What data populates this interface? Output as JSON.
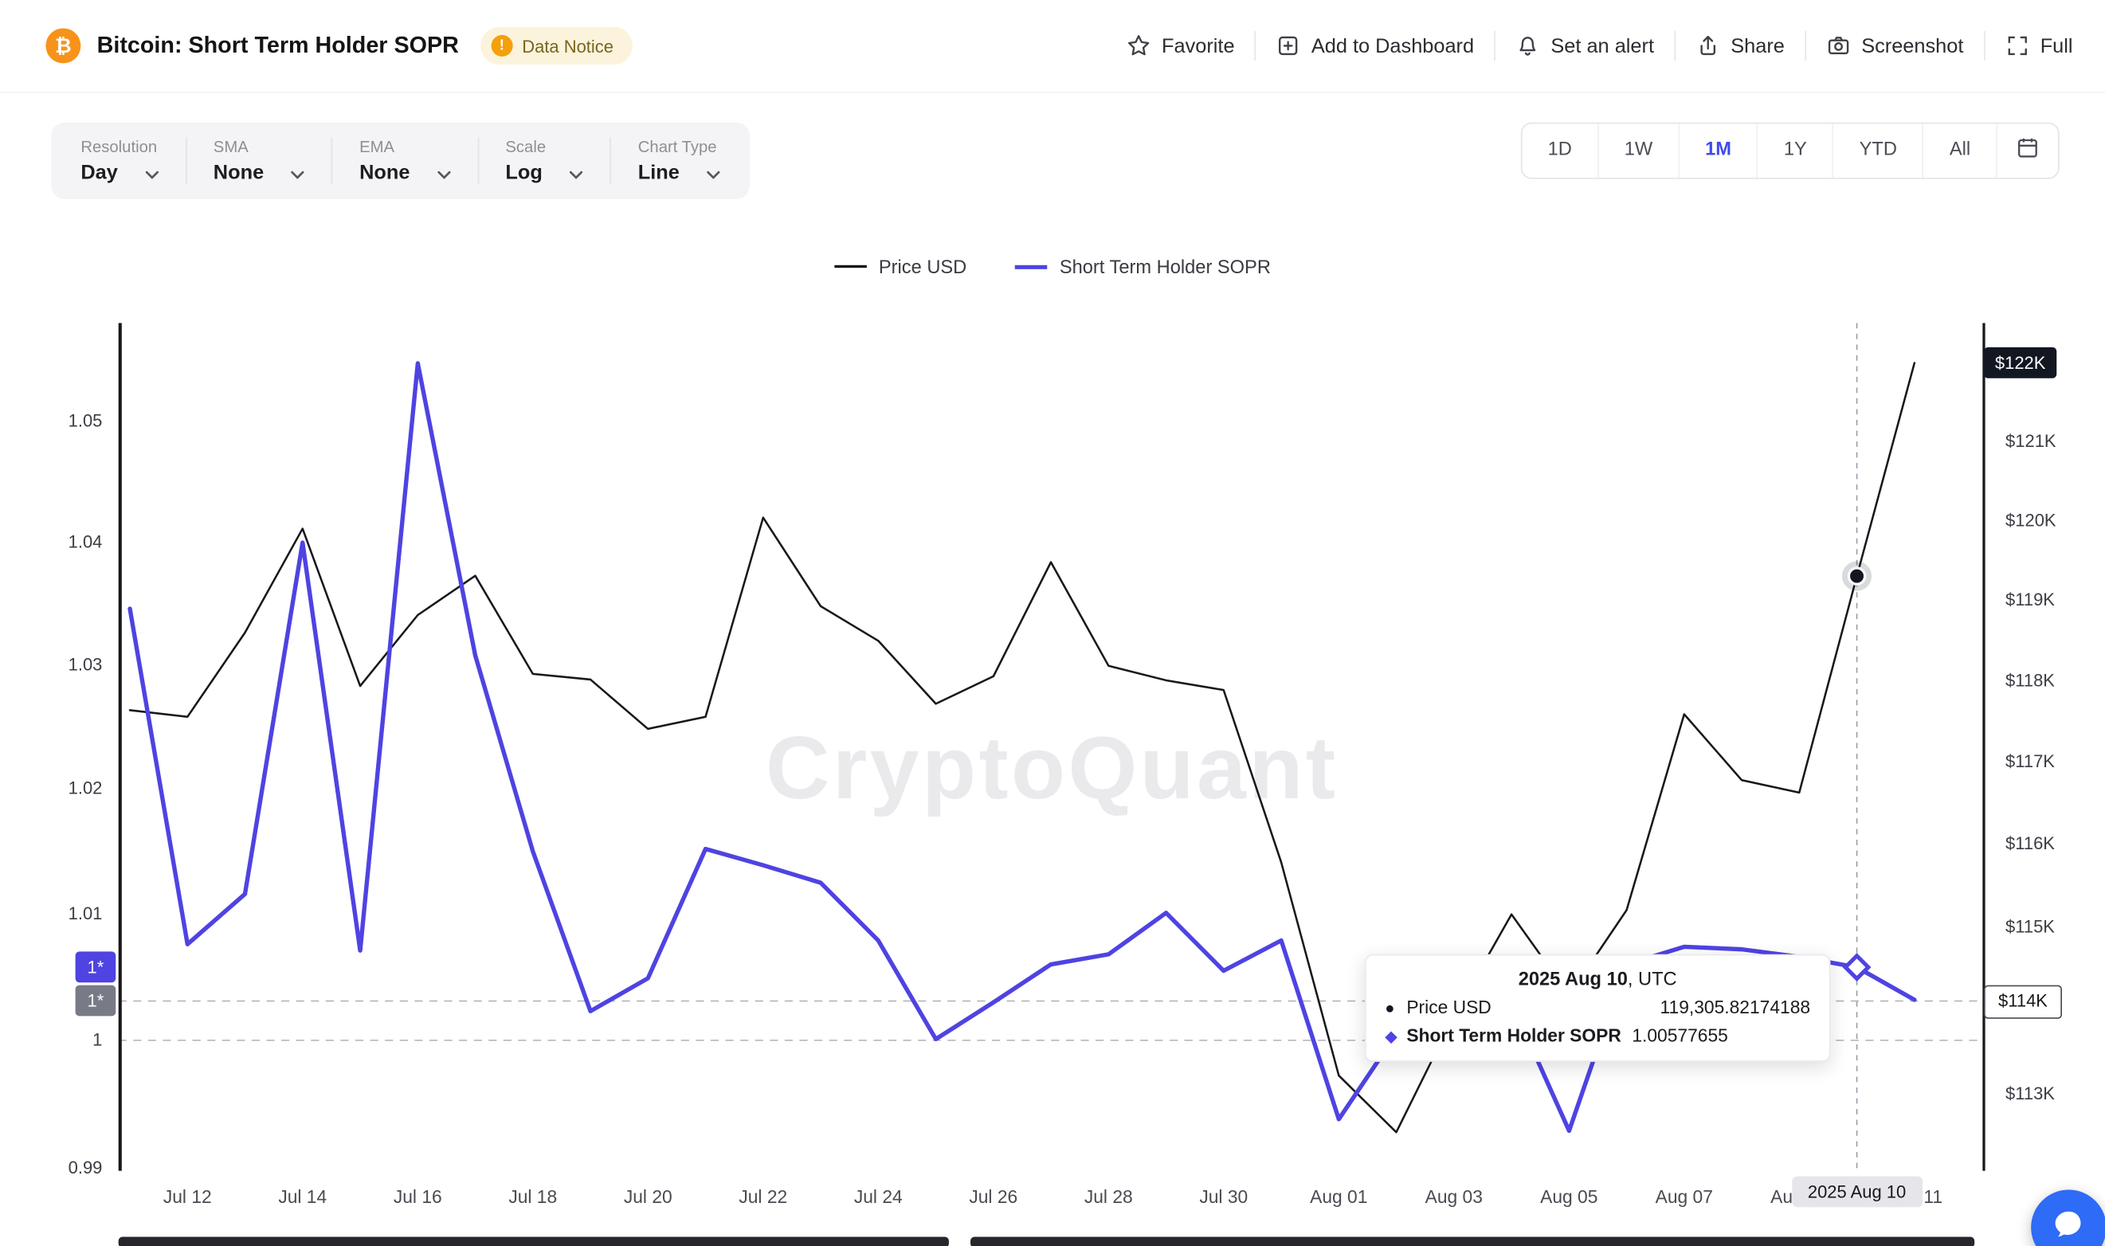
{
  "colors": {
    "accent": "#3d4ceb",
    "sopr_line": "#4f43e2",
    "price_line": "#17171c",
    "bitcoin": "#f7931a",
    "notice_icon": "#f59f0a",
    "chat": "#2e6bf6"
  },
  "header": {
    "coin_symbol": "₿",
    "title": "Bitcoin: Short Term Holder SOPR",
    "notice": {
      "icon_char": "!",
      "label": "Data Notice"
    },
    "actions": [
      {
        "label": "Favorite"
      },
      {
        "label": "Add to Dashboard"
      },
      {
        "label": "Set an alert"
      },
      {
        "label": "Share"
      },
      {
        "label": "Screenshot"
      },
      {
        "label": "Full"
      }
    ]
  },
  "toolbar": {
    "controls": [
      {
        "label": "Resolution",
        "value": "Day"
      },
      {
        "label": "SMA",
        "value": "None"
      },
      {
        "label": "EMA",
        "value": "None"
      },
      {
        "label": "Scale",
        "value": "Log"
      },
      {
        "label": "Chart Type",
        "value": "Line"
      }
    ]
  },
  "range_selector": {
    "options": [
      "1D",
      "1W",
      "1M",
      "1Y",
      "YTD",
      "All"
    ],
    "active": "1M"
  },
  "legend": [
    {
      "label": "Price USD"
    },
    {
      "label": "Short Term Holder SOPR"
    }
  ],
  "watermark": "CryptoQuant",
  "chart_data": {
    "type": "line",
    "x": [
      "Jul 11",
      "Jul 12",
      "Jul 13",
      "Jul 14",
      "Jul 15",
      "Jul 16",
      "Jul 17",
      "Jul 18",
      "Jul 19",
      "Jul 20",
      "Jul 21",
      "Jul 22",
      "Jul 23",
      "Jul 24",
      "Jul 25",
      "Jul 26",
      "Jul 27",
      "Jul 28",
      "Jul 29",
      "Jul 30",
      "Jul 31",
      "Aug 01",
      "Aug 02",
      "Aug 03",
      "Aug 04",
      "Aug 05",
      "Aug 06",
      "Aug 07",
      "Aug 08",
      "Aug 09",
      "Aug 10",
      "Aug 11"
    ],
    "x_tick_indices": [
      1,
      3,
      5,
      7,
      9,
      11,
      13,
      15,
      17,
      19,
      21,
      23,
      25,
      27,
      29,
      31
    ],
    "series": [
      {
        "name": "Price USD",
        "axis": "right",
        "color": "#17171c",
        "unit": "K USD",
        "values": [
          117.64,
          117.56,
          118.6,
          119.9,
          117.94,
          118.82,
          119.31,
          118.09,
          118.02,
          117.41,
          117.56,
          120.04,
          118.93,
          118.5,
          117.72,
          118.06,
          119.48,
          118.19,
          118.01,
          117.89,
          115.78,
          113.22,
          112.55,
          113.93,
          115.15,
          114.18,
          115.2,
          117.59,
          116.78,
          116.63,
          119.30582,
          122.0
        ]
      },
      {
        "name": "Short Term Holder SOPR",
        "axis": "left",
        "color": "#4f43e2",
        "values": [
          1.0346,
          1.0076,
          1.0116,
          1.04,
          1.0071,
          1.0548,
          1.0308,
          1.015,
          1.0023,
          1.0049,
          1.0152,
          1.0139,
          1.0125,
          1.0079,
          1.0001,
          1.003,
          1.006,
          1.0068,
          1.0101,
          1.0055,
          1.0079,
          0.9938,
          1.0005,
          1.001,
          1.003,
          0.9929,
          1.006,
          1.0074,
          1.0072,
          1.0066,
          1.00577655,
          1.0032
        ]
      }
    ],
    "left_axis": {
      "scale": "log",
      "title": "Short Term Holder SOPR",
      "ticks": [
        {
          "v": 0.99,
          "label": "0.99"
        },
        {
          "v": 1,
          "label": "1"
        },
        {
          "v": 1.01,
          "label": "1.01"
        },
        {
          "v": 1.02,
          "label": "1.02"
        },
        {
          "v": 1.03,
          "label": "1.03"
        },
        {
          "v": 1.04,
          "label": "1.04"
        },
        {
          "v": 1.05,
          "label": "1.05"
        }
      ]
    },
    "right_axis": {
      "scale": "log",
      "title": "Price USD",
      "ticks": [
        {
          "v": 113,
          "label": "$113K"
        },
        {
          "v": 114,
          "label": "$114K"
        },
        {
          "v": 115,
          "label": "$115K"
        },
        {
          "v": 116,
          "label": "$116K"
        },
        {
          "v": 117,
          "label": "$117K"
        },
        {
          "v": 118,
          "label": "$118K"
        },
        {
          "v": 119,
          "label": "$119K"
        },
        {
          "v": 120,
          "label": "$120K"
        },
        {
          "v": 121,
          "label": "$121K"
        },
        {
          "v": 122,
          "label": "$122K"
        }
      ]
    },
    "reference_lines": [
      {
        "axis": "left",
        "v": 1.0
      },
      {
        "axis": "left",
        "v": 1.0031
      }
    ],
    "crosshair": {
      "index": 30,
      "date_label": "2025 Aug 10"
    },
    "markers": {
      "price": {
        "index": 30,
        "v": 119.30582174188
      },
      "sopr": {
        "index": 30,
        "v": 1.00577655
      }
    },
    "axis_value_boxes": [
      {
        "axis": "left",
        "v": 1.00577655,
        "label": "1*",
        "style": "accent"
      },
      {
        "axis": "left",
        "v": 1.0031,
        "label": "1*",
        "style": "gray"
      },
      {
        "axis": "right",
        "v": 122.0,
        "label": "$122K",
        "style": "dark"
      },
      {
        "axis": "right",
        "v": 114.12,
        "label": "$114K",
        "style": "light"
      }
    ]
  },
  "tooltip": {
    "title": "2025 Aug 10",
    "title_suffix": ", UTC",
    "rows": [
      {
        "marker_char": "●",
        "label": "Price USD",
        "value": "119,305.82174188"
      },
      {
        "marker_char": "◆",
        "label": "Short Term Holder SOPR",
        "value": "1.00577655"
      }
    ]
  }
}
